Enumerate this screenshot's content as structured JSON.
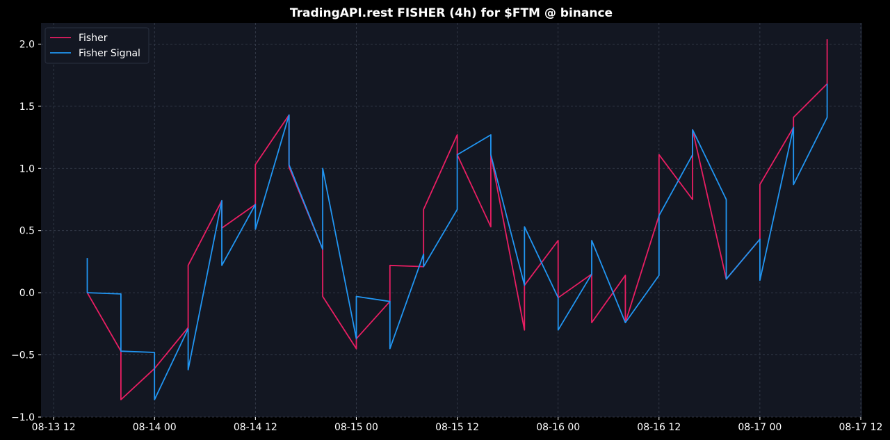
{
  "chart_data": {
    "type": "line",
    "title": "TradingAPI.rest FISHER (4h) for $FTM @ binance",
    "xlabel": "",
    "ylabel": "",
    "xlim": [
      "2023-08-13 10:30",
      "2023-08-17 12:10"
    ],
    "ylim": [
      -1.0,
      2.17
    ],
    "x_ticks": [
      {
        "value": "2023-08-13 12:00",
        "label": "08-13 12"
      },
      {
        "value": "2023-08-14 00:00",
        "label": "08-14 00"
      },
      {
        "value": "2023-08-14 12:00",
        "label": "08-14 12"
      },
      {
        "value": "2023-08-15 00:00",
        "label": "08-15 00"
      },
      {
        "value": "2023-08-15 12:00",
        "label": "08-15 12"
      },
      {
        "value": "2023-08-16 00:00",
        "label": "08-16 00"
      },
      {
        "value": "2023-08-16 12:00",
        "label": "08-16 12"
      },
      {
        "value": "2023-08-17 00:00",
        "label": "08-17 00"
      },
      {
        "value": "2023-08-17 12:00",
        "label": "08-17 12"
      }
    ],
    "y_ticks": [
      {
        "value": -1.0,
        "label": "−1.0"
      },
      {
        "value": -0.5,
        "label": "−0.5"
      },
      {
        "value": 0.0,
        "label": "0.0"
      },
      {
        "value": 0.5,
        "label": "0.5"
      },
      {
        "value": 1.0,
        "label": "1.0"
      },
      {
        "value": 1.5,
        "label": "1.5"
      },
      {
        "value": 2.0,
        "label": "2.0"
      }
    ],
    "grid": true,
    "legend_position": "top-left",
    "background": "#131722",
    "series": [
      {
        "name": "Fisher",
        "color": "#e91e63",
        "points": [
          [
            "2023-08-13 16:00",
            0.0
          ],
          [
            "2023-08-13 20:00",
            -0.47
          ],
          [
            "2023-08-13 20:00",
            -0.86
          ],
          [
            "2023-08-14 00:00",
            -0.61
          ],
          [
            "2023-08-14 04:00",
            -0.28
          ],
          [
            "2023-08-14 04:00",
            0.22
          ],
          [
            "2023-08-14 08:00",
            0.74
          ],
          [
            "2023-08-14 08:00",
            0.52
          ],
          [
            "2023-08-14 12:00",
            0.71
          ],
          [
            "2023-08-14 12:00",
            1.03
          ],
          [
            "2023-08-14 16:00",
            1.43
          ],
          [
            "2023-08-14 16:00",
            1.01
          ],
          [
            "2023-08-14 20:00",
            0.35
          ],
          [
            "2023-08-14 20:00",
            -0.03
          ],
          [
            "2023-08-15 00:00",
            -0.45
          ],
          [
            "2023-08-15 00:00",
            -0.37
          ],
          [
            "2023-08-15 04:00",
            -0.07
          ],
          [
            "2023-08-15 04:00",
            0.22
          ],
          [
            "2023-08-15 08:00",
            0.21
          ],
          [
            "2023-08-15 08:00",
            0.67
          ],
          [
            "2023-08-15 12:00",
            1.27
          ],
          [
            "2023-08-15 12:00",
            1.11
          ],
          [
            "2023-08-15 16:00",
            0.53
          ],
          [
            "2023-08-15 16:00",
            1.11
          ],
          [
            "2023-08-15 20:00",
            -0.3
          ],
          [
            "2023-08-15 20:00",
            0.06
          ],
          [
            "2023-08-16 00:00",
            0.42
          ],
          [
            "2023-08-16 00:00",
            -0.04
          ],
          [
            "2023-08-16 04:00",
            0.15
          ],
          [
            "2023-08-16 04:00",
            -0.24
          ],
          [
            "2023-08-16 08:00",
            0.14
          ],
          [
            "2023-08-16 08:00",
            -0.24
          ],
          [
            "2023-08-16 12:00",
            0.62
          ],
          [
            "2023-08-16 12:00",
            1.11
          ],
          [
            "2023-08-16 16:00",
            0.75
          ],
          [
            "2023-08-16 16:00",
            1.31
          ],
          [
            "2023-08-16 20:00",
            0.11
          ],
          [
            "2023-08-17 00:00",
            0.43
          ],
          [
            "2023-08-17 00:00",
            0.87
          ],
          [
            "2023-08-17 04:00",
            1.33
          ],
          [
            "2023-08-17 04:00",
            1.41
          ],
          [
            "2023-08-17 08:00",
            1.68
          ],
          [
            "2023-08-17 08:00",
            2.04
          ]
        ]
      },
      {
        "name": "Fisher Signal",
        "color": "#2196f3",
        "points": [
          [
            "2023-08-13 16:00",
            0.28
          ],
          [
            "2023-08-13 16:00",
            0.0
          ],
          [
            "2023-08-13 20:00",
            -0.01
          ],
          [
            "2023-08-13 20:00",
            -0.47
          ],
          [
            "2023-08-14 00:00",
            -0.48
          ],
          [
            "2023-08-14 00:00",
            -0.86
          ],
          [
            "2023-08-14 04:00",
            -0.29
          ],
          [
            "2023-08-14 04:00",
            -0.62
          ],
          [
            "2023-08-14 08:00",
            0.74
          ],
          [
            "2023-08-14 08:00",
            0.22
          ],
          [
            "2023-08-14 12:00",
            0.71
          ],
          [
            "2023-08-14 12:00",
            0.51
          ],
          [
            "2023-08-14 16:00",
            1.43
          ],
          [
            "2023-08-14 16:00",
            1.03
          ],
          [
            "2023-08-14 20:00",
            0.35
          ],
          [
            "2023-08-14 20:00",
            1.0
          ],
          [
            "2023-08-15 00:00",
            -0.37
          ],
          [
            "2023-08-15 00:00",
            -0.03
          ],
          [
            "2023-08-15 04:00",
            -0.07
          ],
          [
            "2023-08-15 04:00",
            -0.45
          ],
          [
            "2023-08-15 08:00",
            0.31
          ],
          [
            "2023-08-15 08:00",
            0.21
          ],
          [
            "2023-08-15 12:00",
            0.67
          ],
          [
            "2023-08-15 12:00",
            1.11
          ],
          [
            "2023-08-15 16:00",
            1.27
          ],
          [
            "2023-08-15 16:00",
            1.11
          ],
          [
            "2023-08-15 20:00",
            0.06
          ],
          [
            "2023-08-15 20:00",
            0.53
          ],
          [
            "2023-08-16 00:00",
            -0.04
          ],
          [
            "2023-08-16 00:00",
            -0.3
          ],
          [
            "2023-08-16 04:00",
            0.15
          ],
          [
            "2023-08-16 04:00",
            0.42
          ],
          [
            "2023-08-16 08:00",
            -0.24
          ],
          [
            "2023-08-16 12:00",
            0.14
          ],
          [
            "2023-08-16 12:00",
            0.62
          ],
          [
            "2023-08-16 16:00",
            1.11
          ],
          [
            "2023-08-16 16:00",
            1.31
          ],
          [
            "2023-08-16 20:00",
            0.75
          ],
          [
            "2023-08-16 20:00",
            0.11
          ],
          [
            "2023-08-17 00:00",
            0.43
          ],
          [
            "2023-08-17 00:00",
            0.1
          ],
          [
            "2023-08-17 04:00",
            1.33
          ],
          [
            "2023-08-17 04:00",
            0.87
          ],
          [
            "2023-08-17 08:00",
            1.41
          ],
          [
            "2023-08-17 08:00",
            1.68
          ]
        ]
      }
    ]
  }
}
